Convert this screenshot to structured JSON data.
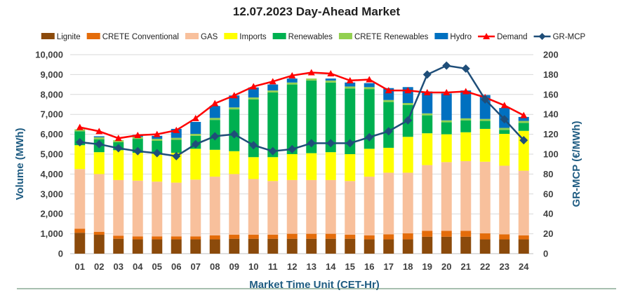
{
  "chart_data": {
    "type": "bar",
    "stacked": true,
    "title": "12.07.2023  Day-Ahead Market",
    "xlabel": "Market Time Unit (CET-Hr)",
    "ylabel": "Volume (MWh)",
    "y2label": "GR-MCP (€/MWh)",
    "ylim": [
      0,
      10000
    ],
    "y2lim": [
      0,
      200
    ],
    "yticks": [
      "0",
      "1,000",
      "2,000",
      "3,000",
      "4,000",
      "5,000",
      "6,000",
      "7,000",
      "8,000",
      "9,000",
      "10,000"
    ],
    "y2ticks": [
      "0",
      "20",
      "40",
      "60",
      "80",
      "100",
      "120",
      "140",
      "160",
      "180",
      "200"
    ],
    "categories": [
      "01",
      "02",
      "03",
      "04",
      "05",
      "06",
      "07",
      "08",
      "09",
      "10",
      "11",
      "12",
      "13",
      "14",
      "15",
      "16",
      "17",
      "18",
      "19",
      "20",
      "21",
      "22",
      "23",
      "24"
    ],
    "grid": true,
    "legend_position": "top",
    "series": [
      {
        "name": "Lignite",
        "color": "#8b4a0b",
        "values": [
          1050,
          950,
          750,
          720,
          720,
          720,
          720,
          720,
          750,
          750,
          750,
          750,
          750,
          750,
          750,
          720,
          720,
          720,
          850,
          850,
          850,
          720,
          720,
          720
        ]
      },
      {
        "name": "CRETE Conventional",
        "color": "#e46c0a",
        "values": [
          200,
          150,
          150,
          150,
          150,
          150,
          150,
          200,
          200,
          200,
          200,
          250,
          250,
          250,
          200,
          200,
          250,
          300,
          300,
          300,
          300,
          300,
          250,
          200
        ]
      },
      {
        "name": "GAS",
        "color": "#f8c09c",
        "values": [
          3000,
          2900,
          2800,
          2800,
          2750,
          2700,
          2850,
          2950,
          3050,
          2800,
          2700,
          2700,
          2700,
          2700,
          2700,
          2950,
          3100,
          3050,
          3300,
          3450,
          3500,
          3600,
          3450,
          3250
        ]
      },
      {
        "name": "Imports",
        "color": "#ffff00",
        "values": [
          1200,
          1100,
          1500,
          1400,
          1400,
          1500,
          1550,
          1350,
          1150,
          1100,
          1200,
          1300,
          1350,
          1400,
          1350,
          1400,
          1250,
          1800,
          1600,
          1400,
          1450,
          1650,
          1600,
          2000
        ]
      },
      {
        "name": "Renewables",
        "color": "#00b050",
        "values": [
          700,
          650,
          400,
          700,
          650,
          650,
          650,
          1500,
          2100,
          2900,
          3250,
          3500,
          3650,
          3500,
          3300,
          3000,
          2300,
          1600,
          900,
          600,
          600,
          400,
          200,
          400
        ]
      },
      {
        "name": "CRETE Renewables",
        "color": "#92d050",
        "values": [
          100,
          100,
          100,
          100,
          100,
          100,
          100,
          100,
          100,
          100,
          100,
          100,
          100,
          100,
          100,
          100,
          100,
          100,
          100,
          100,
          100,
          100,
          100,
          100
        ]
      },
      {
        "name": "Hydro",
        "color": "#0070c0",
        "values": [
          0,
          50,
          0,
          100,
          150,
          450,
          600,
          600,
          600,
          500,
          300,
          200,
          0,
          100,
          200,
          200,
          600,
          800,
          1100,
          1350,
          1400,
          1200,
          1000,
          200
        ]
      },
      {
        "name": "Demand",
        "type": "line",
        "color": "#ff0000",
        "marker": "triangle",
        "axis": "left",
        "values": [
          6350,
          6150,
          5800,
          5950,
          6000,
          6200,
          6800,
          7550,
          7950,
          8400,
          8650,
          8950,
          9100,
          9050,
          8700,
          8750,
          8200,
          8200,
          8100,
          8100,
          8150,
          7850,
          7450,
          6950
        ]
      },
      {
        "name": "GR-MCP",
        "type": "line",
        "color": "#1f4e79",
        "marker": "diamond",
        "axis": "right",
        "values": [
          112,
          110,
          106,
          103,
          101,
          98,
          110,
          118,
          120,
          109,
          103,
          105,
          111,
          111,
          111,
          117,
          123,
          134,
          180,
          189,
          186,
          155,
          135,
          114
        ]
      }
    ]
  }
}
